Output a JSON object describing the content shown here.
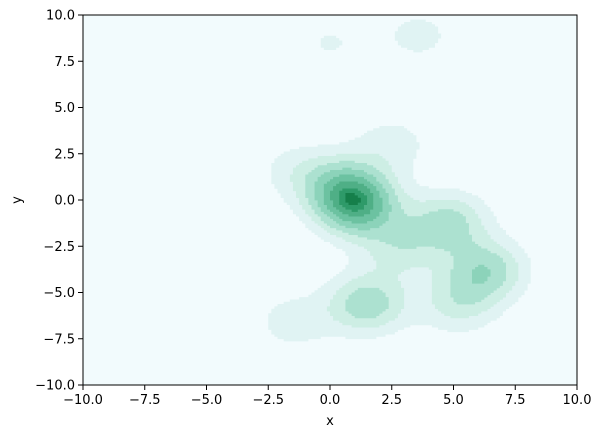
{
  "chart_data": {
    "type": "kde-contour",
    "title": "",
    "xlabel": "x",
    "ylabel": "y",
    "xlim": [
      -10,
      10
    ],
    "ylim": [
      -10,
      10
    ],
    "xticks": [
      -10,
      -7.5,
      -5,
      -2.5,
      0,
      2.5,
      5,
      7.5,
      10
    ],
    "yticks": [
      -10,
      -7.5,
      -5,
      -2.5,
      0,
      2.5,
      5,
      7.5,
      10
    ],
    "xtick_labels": [
      "−10.0",
      "−7.5",
      "−5.0",
      "−2.5",
      "0.0",
      "2.5",
      "5.0",
      "7.5",
      "10.0"
    ],
    "ytick_labels": [
      "−10.0",
      "−7.5",
      "−5.0",
      "−2.5",
      "0.0",
      "2.5",
      "5.0",
      "7.5",
      "10.0"
    ],
    "background_color": "#f2fbfd",
    "colormap": "BuGn",
    "grid": false,
    "components": [
      {
        "x": 1.1,
        "y": -0.3,
        "w": 1.6
      },
      {
        "x": 0.5,
        "y": 0.8,
        "w": 0.9
      },
      {
        "x": 1.5,
        "y": -5.6,
        "w": 1.0
      },
      {
        "x": 4.8,
        "y": -1.2,
        "w": 0.9
      },
      {
        "x": 6.3,
        "y": -3.8,
        "w": 1.0
      },
      {
        "x": 5.2,
        "y": -5.6,
        "w": 0.6
      },
      {
        "x": 2.8,
        "y": -2.6,
        "w": 0.6
      },
      {
        "x": -1.4,
        "y": 1.6,
        "w": 0.35
      },
      {
        "x": -1.5,
        "y": -6.6,
        "w": 0.4
      },
      {
        "x": 3.6,
        "y": 8.9,
        "w": 0.35
      },
      {
        "x": 0.0,
        "y": 8.5,
        "w": 0.28
      },
      {
        "x": 2.5,
        "y": 3.0,
        "w": 0.4
      }
    ],
    "levels": [
      0.12,
      0.24,
      0.36,
      0.5,
      0.64,
      0.78,
      0.9,
      0.97
    ],
    "level_colors": [
      "#e0f3f3",
      "#cdeee4",
      "#ace1d0",
      "#8cd3ba",
      "#6cc2a1",
      "#4faf86",
      "#2e9a69",
      "#157f4a"
    ]
  }
}
